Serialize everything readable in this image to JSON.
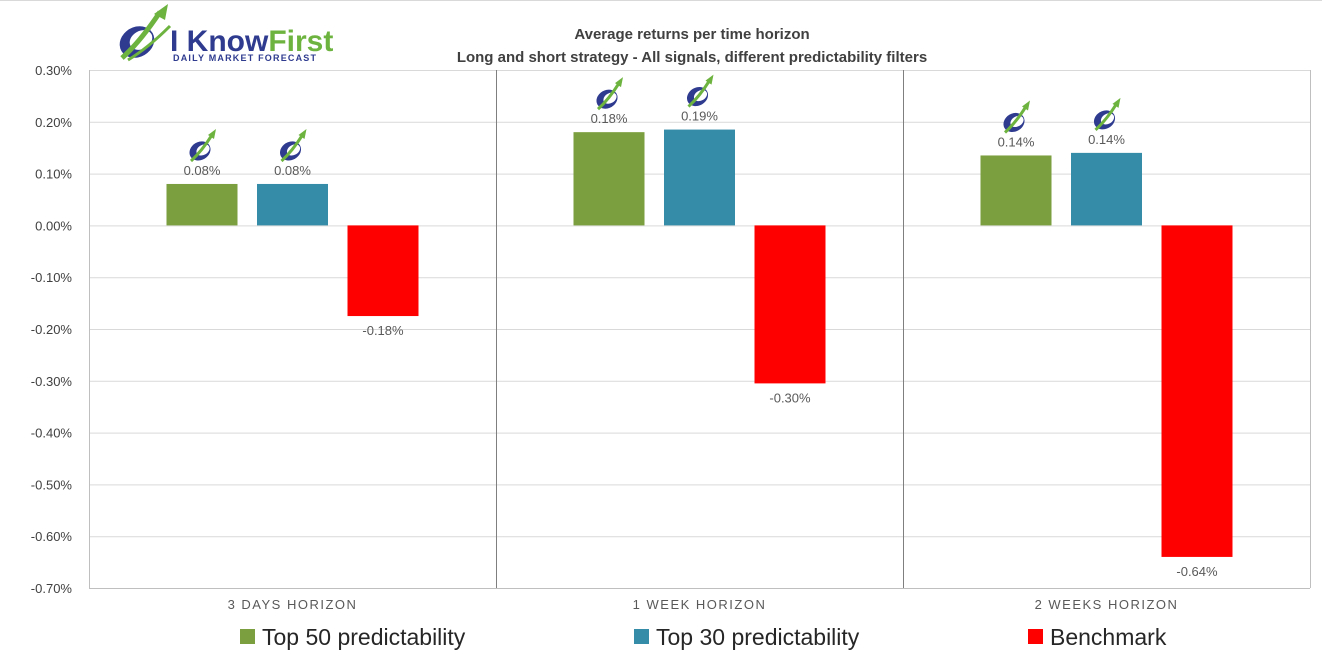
{
  "logo": {
    "word1": "I Know",
    "word2": "First",
    "tagline": "Daily Market Forecast",
    "colors": {
      "blue": "#2e3b8f",
      "green": "#6db33f"
    }
  },
  "chart_data": {
    "type": "bar",
    "title": "Average returns per time horizon",
    "subtitle": "Long and short strategy - All signals, different predictability filters",
    "categories": [
      "3 DAYS HORIZON",
      "1 WEEK HORIZON",
      "2 WEEKS HORIZON"
    ],
    "series": [
      {
        "name": "Top 50 predictability",
        "color": "#7b9e3e",
        "values": [
          0.08,
          0.18,
          0.135
        ],
        "labels": [
          "0.08%",
          "0.18%",
          "0.14%"
        ],
        "logo_marker": true
      },
      {
        "name": "Top 30 predictability",
        "color": "#348ca8",
        "values": [
          0.08,
          0.185,
          0.14
        ],
        "labels": [
          "0.08%",
          "0.19%",
          "0.14%"
        ],
        "logo_marker": true
      },
      {
        "name": "Benchmark",
        "color": "#ff0000",
        "values": [
          -0.175,
          -0.305,
          -0.64
        ],
        "labels": [
          "-0.18%",
          "-0.30%",
          "-0.64%"
        ],
        "logo_marker": false
      }
    ],
    "yticks": [
      "0.30%",
      "0.20%",
      "0.10%",
      "0.00%",
      "-0.10%",
      "-0.20%",
      "-0.30%",
      "-0.40%",
      "-0.50%",
      "-0.60%",
      "-0.70%"
    ],
    "ylim": [
      -0.7,
      0.3
    ],
    "grid": true,
    "legend_position": "bottom"
  }
}
